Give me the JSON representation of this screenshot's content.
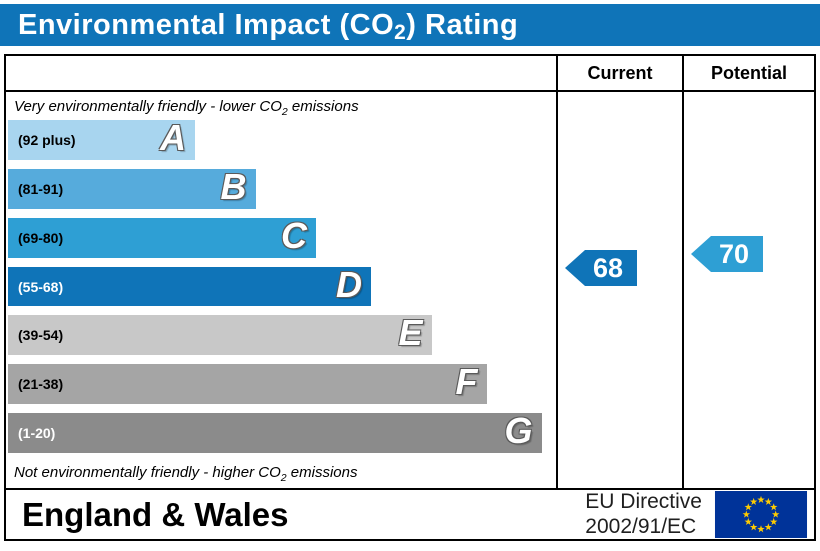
{
  "title": {
    "pre": "Environmental Impact (CO",
    "sub": "2",
    "post": ") Rating"
  },
  "columns": {
    "current": "Current",
    "potential": "Potential"
  },
  "notes": {
    "top": {
      "pre": "Very environmentally friendly - lower CO",
      "sub": "2",
      "post": " emissions"
    },
    "bottom": {
      "pre": "Not environmentally friendly - higher CO",
      "sub": "2",
      "post": " emissions"
    }
  },
  "colors": {
    "title_bar": "#0f74b8",
    "flag_blue": "#003399",
    "flag_star": "#ffcc00"
  },
  "footer": {
    "region": "England & Wales",
    "directive_line1": "EU Directive",
    "directive_line2": "2002/91/EC"
  },
  "chart_data": {
    "type": "bar",
    "title": "Environmental Impact (CO2) Rating",
    "orientation": "horizontal",
    "bands": [
      {
        "letter": "A",
        "range": "(92 plus)",
        "color": "#a8d5ef",
        "label_color": "#000000",
        "width_pct": 34
      },
      {
        "letter": "B",
        "range": "(81-91)",
        "color": "#56abdc",
        "label_color": "#000000",
        "width_pct": 45
      },
      {
        "letter": "C",
        "range": "(69-80)",
        "color": "#2e9fd4",
        "label_color": "#000000",
        "width_pct": 56
      },
      {
        "letter": "D",
        "range": "(55-68)",
        "color": "#0f74b8",
        "label_color": "#ffffff",
        "width_pct": 66
      },
      {
        "letter": "E",
        "range": "(39-54)",
        "color": "#c8c8c8",
        "label_color": "#000000",
        "width_pct": 77
      },
      {
        "letter": "F",
        "range": "(21-38)",
        "color": "#a5a5a5",
        "label_color": "#000000",
        "width_pct": 87
      },
      {
        "letter": "G",
        "range": "(1-20)",
        "color": "#8b8b8b",
        "label_color": "#ffffff",
        "width_pct": 97
      }
    ],
    "ratings": {
      "current": {
        "value": 68,
        "band": "D",
        "color": "#0f74b8"
      },
      "potential": {
        "value": 70,
        "band": "C",
        "color": "#2e9fd4"
      }
    }
  }
}
